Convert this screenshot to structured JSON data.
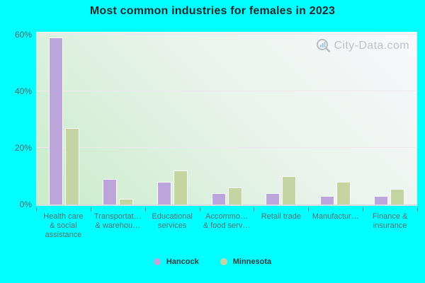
{
  "title": "Most common industries for females in 2023",
  "watermark": {
    "text": "City-Data.com",
    "icon": "magnifier-bar-chart-icon"
  },
  "colors": {
    "page_background": "#00ffff",
    "hancock_bar": "#bba5da",
    "minnesota_bar": "#c5d5a1",
    "gridline": "#efe7ee",
    "axis_text": "#5e6e6e"
  },
  "legend": [
    {
      "label": "Hancock",
      "color": "#bba5da"
    },
    {
      "label": "Minnesota",
      "color": "#c5d5a1"
    }
  ],
  "chart_data": {
    "type": "bar",
    "title": "Most common industries for females in 2023",
    "categories": [
      "Health care & social assistance",
      "Transportat… & warehou…",
      "Educational services",
      "Accommo… & food serv…",
      "Retail trade",
      "Manufactur…",
      "Finance & insurance"
    ],
    "category_lines": [
      [
        "Health care",
        "& social",
        "assistance"
      ],
      [
        "Transportat…",
        "& warehou…"
      ],
      [
        "Educational",
        "services"
      ],
      [
        "Accommo…",
        "& food serv…"
      ],
      [
        "Retail trade"
      ],
      [
        "Manufactur…"
      ],
      [
        "Finance &",
        "insurance"
      ]
    ],
    "series": [
      {
        "name": "Hancock",
        "color": "#bba5da",
        "values": [
          59,
          9,
          8,
          4,
          4,
          3,
          3
        ]
      },
      {
        "name": "Minnesota",
        "color": "#c5d5a1",
        "values": [
          27,
          2,
          12,
          6,
          10,
          8,
          5.5
        ]
      }
    ],
    "xlabel": "",
    "ylabel": "",
    "ylim": [
      0,
      60
    ],
    "yticks": [
      0,
      20,
      40,
      60
    ],
    "ytick_labels": [
      "0%",
      "20%",
      "40%",
      "60%"
    ],
    "grid": true,
    "legend_position": "bottom"
  }
}
